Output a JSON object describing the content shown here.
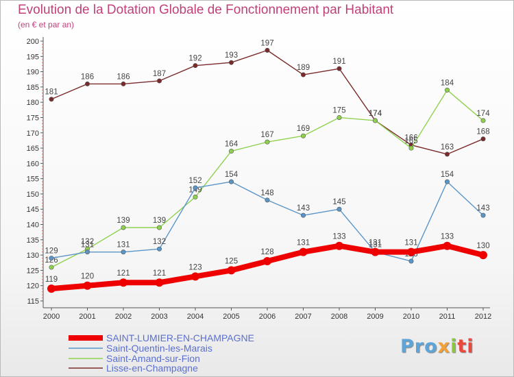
{
  "chart_data": {
    "type": "line",
    "title": "Evolution de la Dotation Globale de Fonctionnement par Habitant",
    "subtitle": "(en € et par an)",
    "xlabel": "",
    "ylabel": "",
    "categories": [
      "2000",
      "2001",
      "2002",
      "2003",
      "2004",
      "2005",
      "2006",
      "2007",
      "2008",
      "2009",
      "2010",
      "2011",
      "2012"
    ],
    "ylim": [
      115,
      200
    ],
    "yticks": [
      115,
      120,
      125,
      130,
      135,
      140,
      145,
      150,
      155,
      160,
      165,
      170,
      175,
      180,
      185,
      190,
      195,
      200
    ],
    "grid": false,
    "legend_position": "bottom-left",
    "series": [
      {
        "name": "SAINT-LUMIER-EN-CHAMPAGNE",
        "color": "#ee0000",
        "values": [
          119,
          120,
          121,
          121,
          123,
          125,
          128,
          131,
          133,
          131,
          131,
          133,
          130
        ]
      },
      {
        "name": "Saint-Quentin-les-Marais",
        "color": "#5a95c8",
        "values": [
          129,
          131,
          131,
          132,
          152,
          154,
          148,
          143,
          145,
          131,
          128,
          154,
          143
        ]
      },
      {
        "name": "Saint-Amand-sur-Fion",
        "color": "#8fd14f",
        "values": [
          126,
          132,
          139,
          139,
          149,
          164,
          167,
          169,
          175,
          174,
          165,
          184,
          174
        ]
      },
      {
        "name": "Lisse-en-Champagne",
        "color": "#7a2a2a",
        "values": [
          181,
          186,
          186,
          187,
          192,
          193,
          197,
          189,
          191,
          174,
          166,
          163,
          168
        ]
      }
    ]
  },
  "logo": {
    "p1": "Pro",
    "p2": "x",
    "p3": "i",
    "p4": "ti"
  }
}
